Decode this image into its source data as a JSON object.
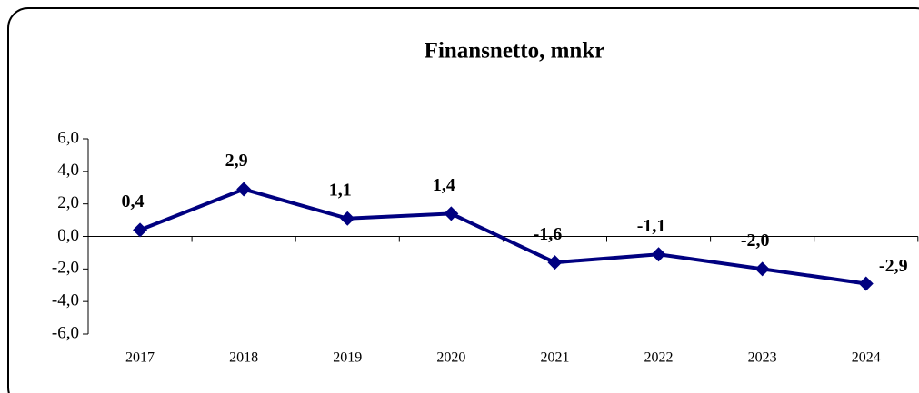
{
  "chart_data": {
    "type": "line",
    "title": "Finansnetto, mnkr",
    "categories": [
      "2017",
      "2018",
      "2019",
      "2020",
      "2021",
      "2022",
      "2023",
      "2024"
    ],
    "series": [
      {
        "name": "Finansnetto",
        "color": "#000080",
        "values": [
          0.4,
          2.9,
          1.1,
          1.4,
          -1.6,
          -1.1,
          -2.0,
          -2.9
        ],
        "value_labels": [
          "0,4",
          "2,9",
          "1,1",
          "1,4",
          "-1,6",
          "-1,1",
          "-2,0",
          "-2,9"
        ]
      }
    ],
    "ylim": [
      -6,
      6
    ],
    "yticks": [
      {
        "value": -6,
        "label": "-6,0"
      },
      {
        "value": -4,
        "label": "-4,0"
      },
      {
        "value": -2,
        "label": "-2,0"
      },
      {
        "value": 0,
        "label": "0,0"
      },
      {
        "value": 2,
        "label": "2,0"
      },
      {
        "value": 4,
        "label": "4,0"
      },
      {
        "value": 6,
        "label": "6,0"
      }
    ]
  }
}
